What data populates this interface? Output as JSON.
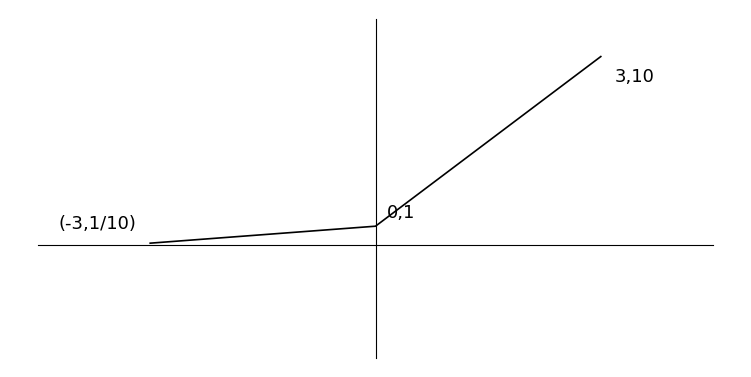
{
  "chart_data": {
    "type": "line",
    "x": [
      -3,
      0,
      3
    ],
    "values": [
      0.1,
      1,
      10
    ],
    "color": "#000000",
    "line_style": "solid",
    "xlim": [
      -4.5,
      4.5
    ],
    "ylim": [
      -6,
      12
    ],
    "xticks": [],
    "yticks": [],
    "tick_labels": false,
    "grid": false,
    "annotations": [
      {
        "text": "(-3,1/10)",
        "x": -3,
        "y": 0.1
      },
      {
        "text": "0,1",
        "x": 0,
        "y": 1
      },
      {
        "text": "3,10",
        "x": 3,
        "y": 10
      }
    ]
  }
}
